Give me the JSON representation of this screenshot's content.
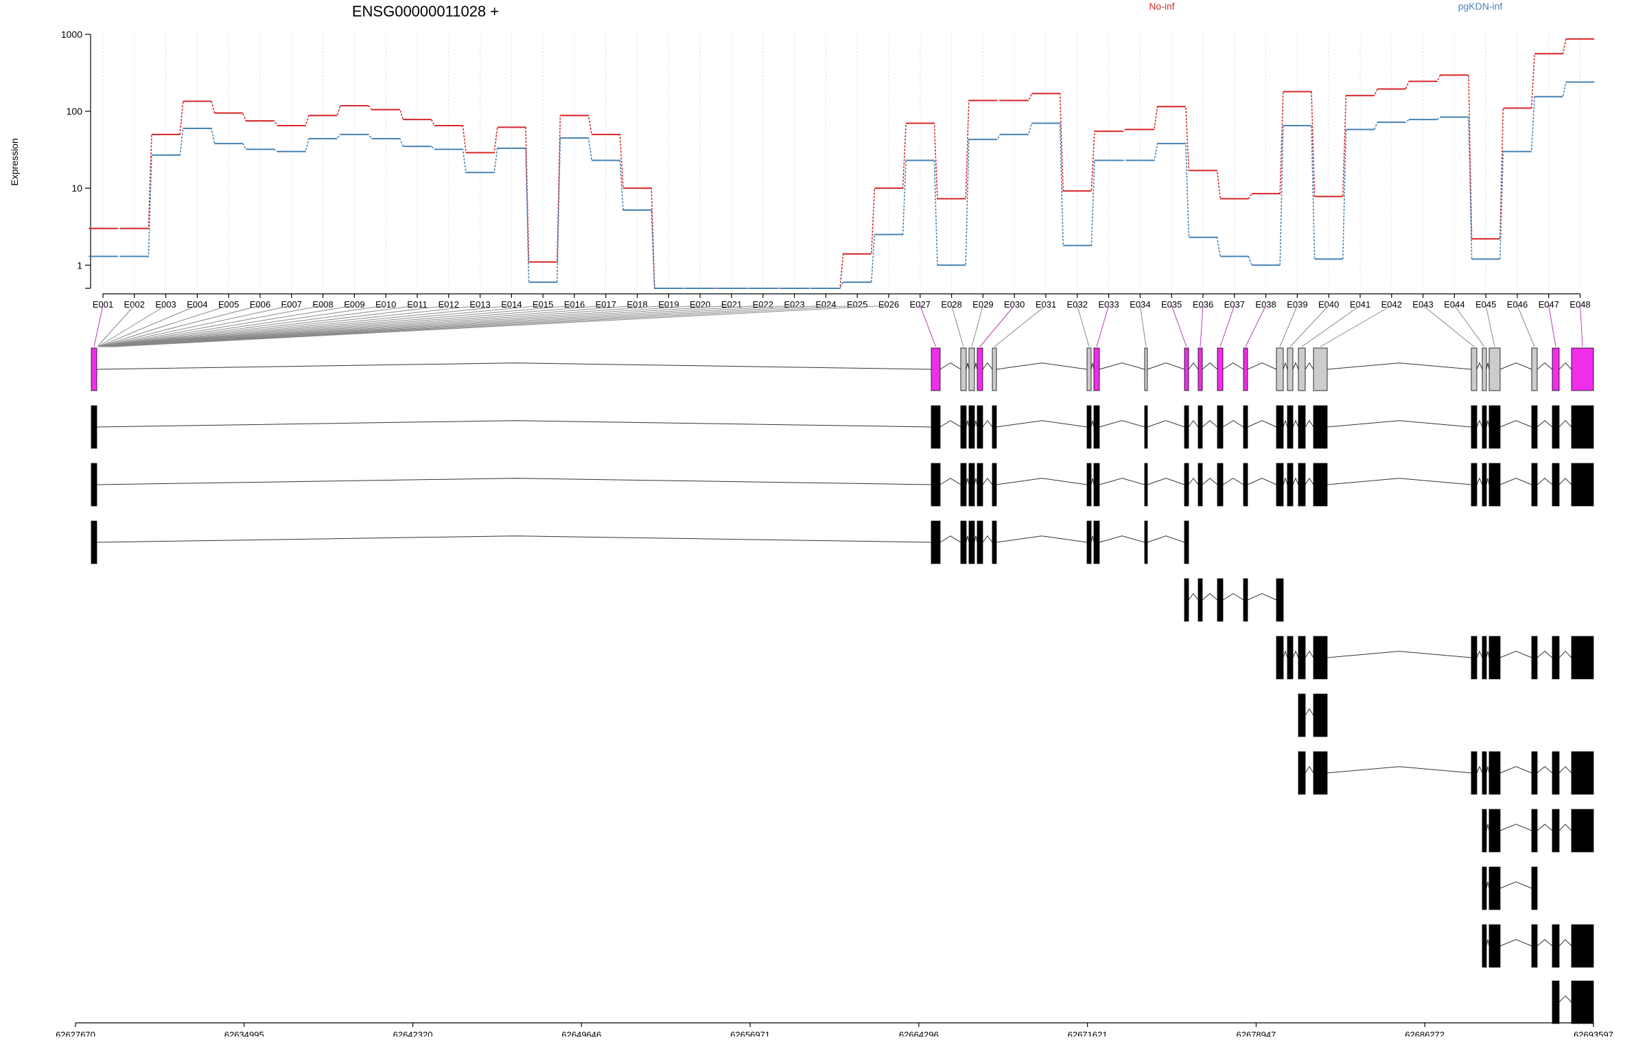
{
  "chart_data": {
    "type": "line",
    "title": "ENSG00000011028 +",
    "ylabel": "Expression",
    "xlabel": "",
    "y_scale": "log",
    "ylim": [
      0.5,
      1000
    ],
    "y_ticks": [
      1,
      10,
      100,
      1000
    ],
    "y_tick_labels": [
      "1",
      "10",
      "100",
      "1000"
    ],
    "grid": "vertical dotted lines at each exon",
    "legend_position": "top-right",
    "categories": [
      "E001",
      "E002",
      "E003",
      "E004",
      "E005",
      "E006",
      "E007",
      "E008",
      "E009",
      "E010",
      "E011",
      "E012",
      "E013",
      "E014",
      "E015",
      "E016",
      "E017",
      "E018",
      "E019",
      "E020",
      "E021",
      "E022",
      "E023",
      "E024",
      "E025",
      "E026",
      "E027",
      "E028",
      "E029",
      "E030",
      "E031",
      "E032",
      "E033",
      "E034",
      "E035",
      "E036",
      "E037",
      "E038",
      "E039",
      "E040",
      "E041",
      "E042",
      "E043",
      "E044",
      "E045",
      "E046",
      "E047",
      "E048"
    ],
    "series": [
      {
        "name": "No-inf",
        "color": "#d62728",
        "values": [
          3,
          3,
          50,
          135,
          95,
          75,
          65,
          88,
          118,
          105,
          78,
          65,
          29,
          62,
          1.1,
          88,
          50,
          10,
          0.5,
          0.5,
          0.5,
          0.5,
          0.5,
          0.5,
          1.4,
          10,
          70,
          7.3,
          138,
          138,
          170,
          9.2,
          55,
          58,
          115,
          17,
          7.3,
          8.5,
          180,
          7.8,
          160,
          195,
          245,
          295,
          2.2,
          110,
          560,
          870
        ]
      },
      {
        "name": "pgKDN-inf",
        "color": "#4682b4",
        "values": [
          1.3,
          1.3,
          27,
          60,
          38,
          32,
          30,
          44,
          50,
          44,
          35,
          32,
          16,
          33,
          0.6,
          45,
          23,
          5.2,
          0.5,
          0.5,
          0.5,
          0.5,
          0.5,
          0.5,
          0.6,
          2.5,
          23,
          1.0,
          43,
          50,
          70,
          1.8,
          23,
          23,
          38,
          2.3,
          1.3,
          1.0,
          65,
          1.2,
          58,
          72,
          78,
          84,
          1.2,
          30,
          155,
          240
        ]
      }
    ],
    "highlighted_exons": [
      "E001",
      "E027",
      "E030",
      "E033",
      "E035",
      "E036",
      "E037",
      "E038",
      "E047",
      "E048"
    ],
    "genomic_axis": {
      "labels": [
        "62627670",
        "62634995",
        "62642320",
        "62649646",
        "62656971",
        "62664296",
        "62671621",
        "62678947",
        "62686272",
        "62693597"
      ]
    },
    "transcripts": [
      {
        "exons": [
          [
            "E001"
          ],
          [
            "E027"
          ],
          [
            "E028"
          ],
          [
            "E029",
            "E030"
          ],
          [
            "E031"
          ],
          [
            "E032"
          ],
          [
            "E033"
          ],
          [
            "E034"
          ],
          [
            "E035"
          ],
          [
            "E036"
          ],
          [
            "E037"
          ],
          [
            "E038"
          ],
          [
            "E039"
          ],
          [
            "E040"
          ],
          [
            "E041"
          ],
          [
            "E042"
          ],
          [
            "E043"
          ],
          [
            "E044"
          ],
          [
            "E045"
          ],
          [
            "E046"
          ],
          [
            "E047"
          ],
          [
            "E048"
          ]
        ]
      }
    ],
    "colors": {
      "highlight": "#ee2ee8",
      "exon": "#000000",
      "unhighlighted_exon": "#cccccc",
      "intron": "#333333"
    }
  }
}
